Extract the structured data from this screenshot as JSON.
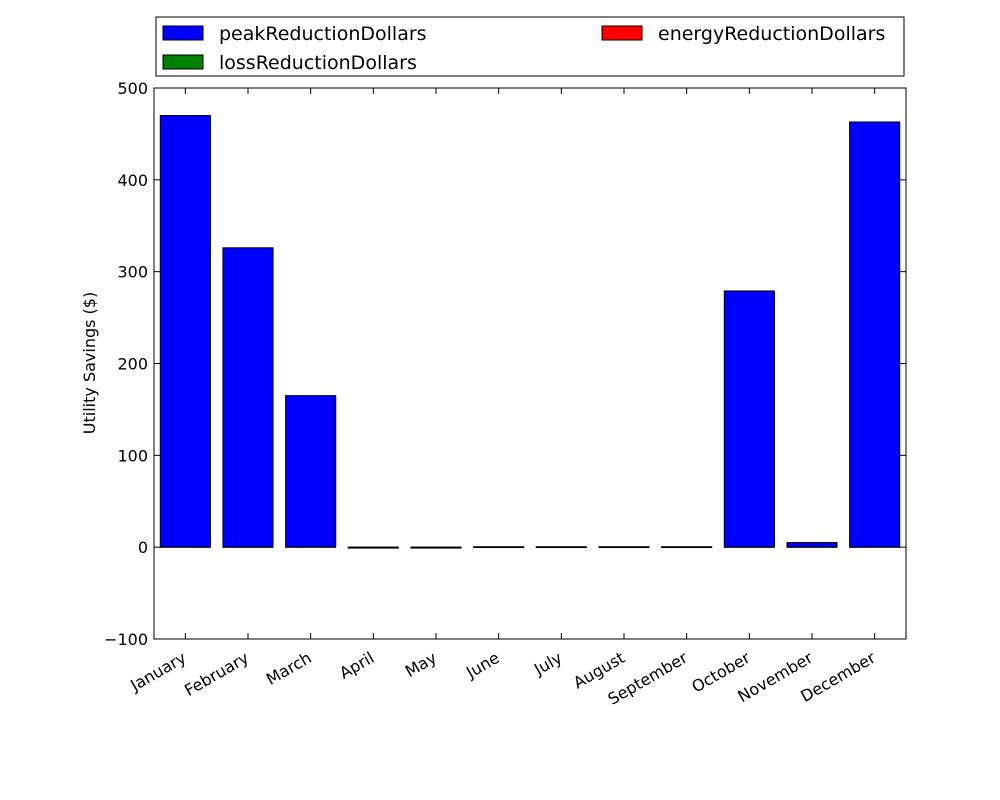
{
  "chart_data": {
    "type": "bar",
    "stacked": true,
    "title": "",
    "xlabel": "",
    "ylabel": "Utility Savings ($)",
    "ylim": [
      -100,
      500
    ],
    "yticks": [
      -100,
      0,
      100,
      200,
      300,
      400,
      500
    ],
    "grid": false,
    "legend_position": "top",
    "categories": [
      "January",
      "February",
      "March",
      "April",
      "May",
      "June",
      "July",
      "August",
      "September",
      "October",
      "November",
      "December"
    ],
    "series": [
      {
        "name": "peakReductionDollars",
        "color": "#0000ff",
        "values": [
          470,
          326,
          165,
          -1,
          -1,
          0.5,
          0.5,
          0.5,
          0.5,
          279,
          5,
          463
        ]
      },
      {
        "name": "lossReductionDollars",
        "color": "#008000",
        "values": [
          0,
          0,
          0,
          0,
          0,
          0,
          0,
          0,
          0,
          0,
          0,
          0
        ]
      },
      {
        "name": "energyReductionDollars",
        "color": "#ff0000",
        "values": [
          0,
          0,
          0,
          0,
          0,
          0,
          0,
          0,
          0,
          0,
          0,
          0
        ]
      }
    ]
  }
}
